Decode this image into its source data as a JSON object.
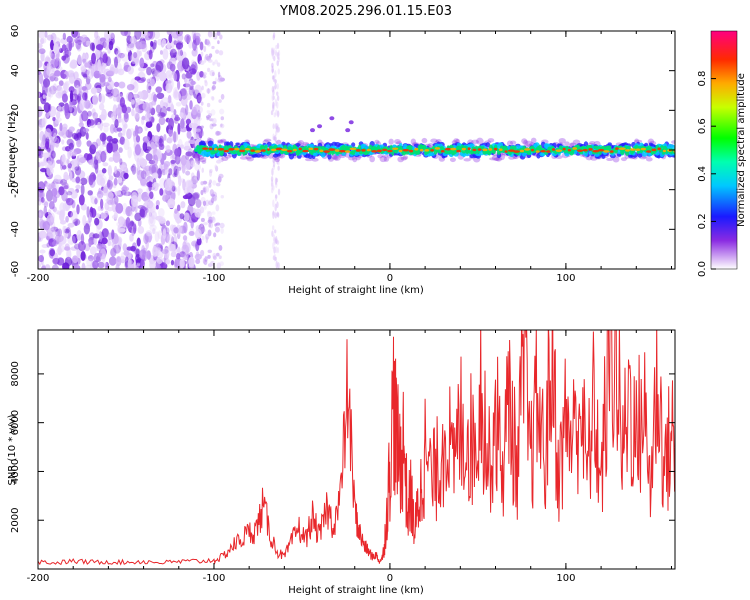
{
  "figure_title": "YM08.2025.296.01.15.E03",
  "colors": {
    "snr_line": "#e8272b",
    "axis": "#000000",
    "background": "#ffffff"
  },
  "chart_data": [
    {
      "type": "heatmap",
      "name": "spectrogram",
      "title": "YM08.2025.296.01.15.E03",
      "xlabel": "Height of straight line (km)",
      "ylabel": "Frequency (Hz)",
      "xlim": [
        -200,
        162
      ],
      "ylim": [
        -60,
        60
      ],
      "xticks": [
        -200,
        -100,
        0,
        100
      ],
      "yticks": [
        -60,
        -40,
        -20,
        0,
        20,
        40,
        60
      ],
      "x_tick_labels": [
        "-200",
        "-100",
        "0",
        "100"
      ],
      "y_tick_labels": [
        "-60",
        "-40",
        "-20",
        "0",
        "20",
        "40",
        "60"
      ],
      "colorbar": {
        "label": "Normalized spectral amplitude",
        "range": [
          0,
          1
        ],
        "ticks": [
          0.0,
          0.2,
          0.4,
          0.6,
          0.8
        ],
        "tick_labels": [
          "0.0",
          "0.2",
          "0.4",
          "0.6",
          "0.8"
        ]
      },
      "regions": [
        {
          "name": "broadband noise",
          "x_range": [
            -200,
            -107
          ],
          "freq_range": [
            -60,
            60
          ],
          "amplitude": 0.2
        },
        {
          "name": "diffuse scatter",
          "x_range": [
            -107,
            -95
          ],
          "freq_range": [
            -60,
            60
          ],
          "amplitude": 0.05
        },
        {
          "name": "vertical stripe",
          "x_range": [
            -67,
            -63
          ],
          "freq_range": [
            -60,
            60
          ],
          "amplitude": 0.05
        },
        {
          "name": "signal band",
          "x_range": [
            -110,
            162
          ],
          "freq_range": [
            -5,
            5
          ],
          "amplitude": 0.95
        }
      ]
    },
    {
      "type": "line",
      "name": "snr",
      "xlabel": "Height of straight line (km)",
      "ylabel": "SNR (10 * v/v)",
      "xlim": [
        -200,
        162
      ],
      "ylim": [
        0,
        9800
      ],
      "xticks": [
        -200,
        -100,
        0,
        100
      ],
      "yticks": [
        2000,
        4000,
        6000,
        8000
      ],
      "x_tick_labels": [
        "-200",
        "-100",
        "0",
        "100"
      ],
      "y_tick_labels": [
        "2000",
        "4000",
        "6000",
        "8000"
      ],
      "series": [
        {
          "name": "SNR",
          "x": [
            -200,
            -190,
            -180,
            -170,
            -160,
            -150,
            -140,
            -130,
            -120,
            -110,
            -100,
            -95,
            -90,
            -85,
            -80,
            -76,
            -72,
            -68,
            -64,
            -60,
            -56,
            -52,
            -48,
            -44,
            -40,
            -36,
            -32,
            -28,
            -24,
            -20,
            -18,
            -16,
            -14,
            -12,
            -10,
            -8,
            -6,
            -4,
            -2,
            0,
            2,
            4,
            6,
            8,
            10,
            12,
            14,
            16,
            18,
            20,
            24,
            28,
            32,
            36,
            40,
            44,
            48,
            52,
            56,
            60,
            64,
            68,
            72,
            76,
            80,
            84,
            88,
            92,
            96,
            100,
            104,
            108,
            112,
            116,
            120,
            124,
            128,
            132,
            136,
            140,
            144,
            148,
            152,
            156,
            160,
            162
          ],
          "values": [
            300,
            250,
            320,
            280,
            300,
            270,
            310,
            260,
            300,
            320,
            350,
            500,
            900,
            1200,
            1500,
            1600,
            2600,
            1400,
            700,
            500,
            1100,
            1700,
            1200,
            2100,
            1300,
            2500,
            1800,
            3000,
            7500,
            2400,
            1700,
            1200,
            900,
            700,
            500,
            600,
            300,
            500,
            2000,
            4200,
            6900,
            5100,
            4400,
            5300,
            2200,
            3100,
            1500,
            2600,
            3400,
            4800,
            3600,
            4300,
            6100,
            3900,
            6000,
            5600,
            5000,
            7800,
            4100,
            6500,
            4100,
            7200,
            3900,
            8300,
            4400,
            7000,
            4200,
            9100,
            3700,
            6200,
            5200,
            7100,
            3900,
            6700,
            3400,
            8200,
            9600,
            4600,
            7300,
            5200,
            6800,
            3500,
            7900,
            4100,
            5500,
            5900
          ]
        }
      ]
    }
  ]
}
